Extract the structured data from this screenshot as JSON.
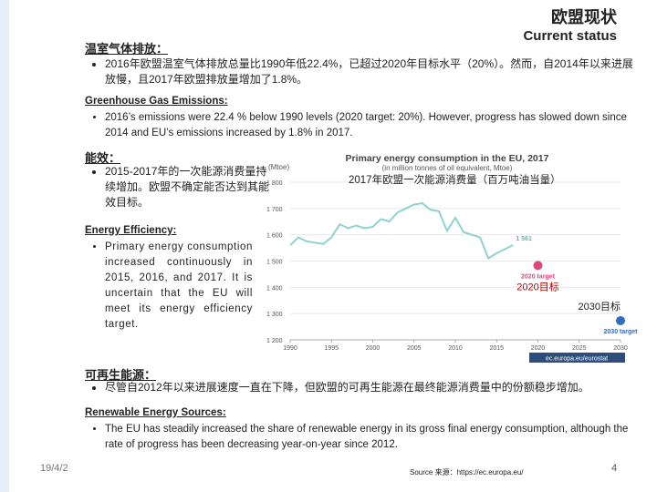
{
  "header": {
    "title_cn": "欧盟现状",
    "title_en": "Current status"
  },
  "ghg": {
    "heading_cn": "温室气体排放：",
    "bullet_cn": "2016年欧盟温室气体排放总量比1990年低22.4%，已超过2020年目标水平（20%）。然而，自2014年以来进展放慢，且2017年欧盟排放量增加了1.8%。",
    "heading_en": "Greenhouse Gas Emissions:",
    "bullet_en": "2016’s emissions were 22.4 % below 1990 levels (2020 target: 20%). However, progress has slowed down since 2014 and EU’s emissions increased by 1.8% in 2017."
  },
  "energy": {
    "heading_cn": "能效：",
    "bullet_cn": "2015-2017年的一次能源消费量持续增加。欧盟不确定能否达到其能效目标。",
    "heading_en": "Energy Efficiency:",
    "bullet_en": "Primary energy consumption increased continuously in 2015, 2016, and 2017. It is uncertain that the EU will meet its energy efficiency target."
  },
  "chart": {
    "type": "line",
    "title": "Primary energy consumption in the EU, 2017",
    "subtitle": "(in million tonnes of oil equivalent, Mtoe)",
    "ylabel": "(Mtoe)",
    "source": "ec.europa.eu/eurostat",
    "annotation_cn": "2017年欧盟一次能源消费量（百万吨油当量）",
    "x": [
      1990,
      1991,
      1992,
      1993,
      1994,
      1995,
      1996,
      1997,
      1998,
      1999,
      2000,
      2001,
      2002,
      2003,
      2004,
      2005,
      2006,
      2007,
      2008,
      2009,
      2010,
      2011,
      2012,
      2013,
      2014,
      2015,
      2016,
      2017
    ],
    "values": [
      1560,
      1590,
      1575,
      1570,
      1565,
      1590,
      1640,
      1625,
      1635,
      1625,
      1630,
      1660,
      1650,
      1685,
      1700,
      1715,
      1720,
      1695,
      1690,
      1615,
      1665,
      1610,
      1600,
      1590,
      1510,
      1530,
      1545,
      1561
    ],
    "value_labels": [
      null,
      null,
      null,
      null,
      null,
      null,
      null,
      null,
      null,
      null,
      null,
      null,
      null,
      null,
      null,
      null,
      null,
      null,
      null,
      null,
      null,
      null,
      null,
      null,
      null,
      null,
      null,
      "1 561"
    ],
    "color": "#8fd3cf",
    "targets": [
      {
        "x": 2020,
        "value": 1483,
        "label": "2020 target",
        "label_cn": "2020目标",
        "color": "#e0457b",
        "label_cn_color": "#c00000"
      },
      {
        "x": 2030,
        "value": 1273,
        "label": "2030 target",
        "label_cn": "2030目标",
        "color": "#2f6ebe",
        "label_cn_color": "#222222"
      }
    ],
    "xlim": [
      1990,
      2030
    ],
    "xticks": [
      1990,
      1995,
      2000,
      2005,
      2010,
      2015,
      2020,
      2025,
      2030
    ],
    "ylim": [
      1200,
      1800
    ],
    "yticks": [
      {
        "value": 1200,
        "label": "1 200"
      },
      {
        "value": 1300,
        "label": "1 300"
      },
      {
        "value": 1400,
        "label": "1 400"
      },
      {
        "value": 1500,
        "label": "1 500"
      },
      {
        "value": 1600,
        "label": "1 600"
      },
      {
        "value": 1700,
        "label": "1 700"
      },
      {
        "value": 1800,
        "label": "1 800"
      }
    ],
    "grid": true
  },
  "renewable": {
    "heading_cn": "可再生能源：",
    "bullet_cn": "尽管自2012年以来进展速度一直在下降，但欧盟的可再生能源在最终能源消费量中的份额稳步增加。",
    "heading_en": "Renewable Energy Sources:",
    "bullet_en": "The EU has steadily increased the share of renewable energy in its gross final energy consumption, although the rate of progress has been decreasing year-on-year since 2012."
  },
  "footer": {
    "date": "19/4/2",
    "source": "Source 来源：https://ec.europa.eu/",
    "page": "4"
  }
}
